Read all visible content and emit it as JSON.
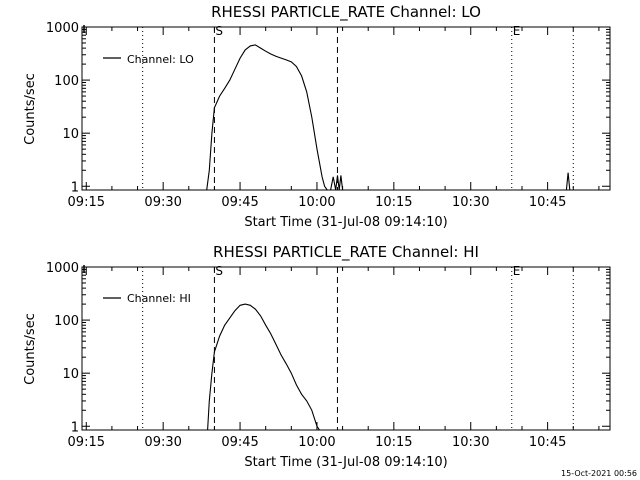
{
  "footer": {
    "timestamp": "15-Oct-2021 00:56"
  },
  "chart_data": [
    {
      "type": "line",
      "title": "RHESSI PARTICLE_RATE Channel: LO",
      "xlabel": "Start Time (31-Jul-08 09:14:10)",
      "ylabel": "Counts/sec",
      "yscale": "log",
      "xlim_minutes": [
        0,
        103
      ],
      "ylim": [
        0.85,
        1000
      ],
      "x_tick_labels": [
        "09:15",
        "09:30",
        "09:45",
        "10:00",
        "10:15",
        "10:30",
        "10:45"
      ],
      "y_tick_labels": [
        "1",
        "10",
        "100",
        "1000"
      ],
      "y_tick_values": [
        1,
        10,
        100,
        1000
      ],
      "legend": {
        "label": "Channel: LO",
        "position": "top-left"
      },
      "markers": [
        {
          "label": "S",
          "time": "09:40",
          "style": "dashed"
        },
        {
          "label": "",
          "time": "10:04",
          "style": "dashed"
        },
        {
          "label": "E",
          "time": "10:38",
          "style": "dotted"
        },
        {
          "label": "",
          "time": "09:26",
          "style": "dotted"
        },
        {
          "label": "",
          "time": "10:50",
          "style": "dotted"
        }
      ],
      "series": [
        {
          "name": "Channel: LO",
          "x": [
            "09:38:30",
            "09:39:00",
            "09:39:30",
            "09:40:00",
            "09:41:00",
            "09:42:00",
            "09:43:00",
            "09:44:00",
            "09:45:00",
            "09:46:00",
            "09:47:00",
            "09:48:00",
            "09:49:00",
            "09:50:00",
            "09:51:00",
            "09:52:00",
            "09:53:00",
            "09:54:00",
            "09:55:00",
            "09:56:00",
            "09:57:00",
            "09:58:00",
            "09:59:00",
            "10:00:00",
            "10:01:00",
            "10:01:30",
            "10:02:00"
          ],
          "y": [
            0.85,
            2,
            10,
            30,
            50,
            70,
            100,
            160,
            260,
            370,
            440,
            460,
            400,
            350,
            310,
            280,
            260,
            240,
            220,
            180,
            120,
            60,
            20,
            5,
            1.5,
            1,
            0.85
          ]
        },
        {
          "name": "Channel: LO",
          "x": [
            "10:02:40",
            "10:03:10",
            "10:03:40",
            "10:04:00",
            "10:04:20",
            "10:04:40",
            "10:05:00"
          ],
          "y": [
            0.85,
            1.5,
            0.85,
            1.6,
            0.85,
            1.6,
            0.85
          ]
        },
        {
          "name": "Channel: LO",
          "x": [
            "10:48:40",
            "10:49:00",
            "10:49:20"
          ],
          "y": [
            0.85,
            1.8,
            0.85
          ]
        }
      ]
    },
    {
      "type": "line",
      "title": "RHESSI PARTICLE_RATE Channel: HI",
      "xlabel": "Start Time (31-Jul-08 09:14:10)",
      "ylabel": "Counts/sec",
      "yscale": "log",
      "xlim_minutes": [
        0,
        103
      ],
      "ylim": [
        0.85,
        1000
      ],
      "x_tick_labels": [
        "09:15",
        "09:30",
        "09:45",
        "10:00",
        "10:15",
        "10:30",
        "10:45"
      ],
      "y_tick_labels": [
        "1",
        "10",
        "100",
        "1000"
      ],
      "y_tick_values": [
        1,
        10,
        100,
        1000
      ],
      "legend": {
        "label": "Channel: HI",
        "position": "top-left"
      },
      "markers": [
        {
          "label": "S",
          "time": "09:40",
          "style": "dashed"
        },
        {
          "label": "",
          "time": "10:04",
          "style": "dashed"
        },
        {
          "label": "E",
          "time": "10:38",
          "style": "dotted"
        },
        {
          "label": "",
          "time": "09:26",
          "style": "dotted"
        },
        {
          "label": "",
          "time": "10:50",
          "style": "dotted"
        }
      ],
      "series": [
        {
          "name": "Channel: HI",
          "x": [
            "09:38:40",
            "09:39:00",
            "09:39:30",
            "09:40:00",
            "09:41:00",
            "09:42:00",
            "09:43:00",
            "09:44:00",
            "09:45:00",
            "09:46:00",
            "09:47:00",
            "09:48:00",
            "09:49:00",
            "09:50:00",
            "09:51:00",
            "09:52:00",
            "09:53:00",
            "09:54:00",
            "09:55:00",
            "09:56:00",
            "09:57:00",
            "09:58:00",
            "09:59:00",
            "10:00:00",
            "10:00:30"
          ],
          "y": [
            0.85,
            3,
            10,
            25,
            50,
            80,
            110,
            150,
            190,
            200,
            190,
            160,
            120,
            80,
            55,
            35,
            22,
            15,
            10,
            6,
            4,
            3,
            2,
            1,
            0.85
          ]
        }
      ]
    }
  ]
}
